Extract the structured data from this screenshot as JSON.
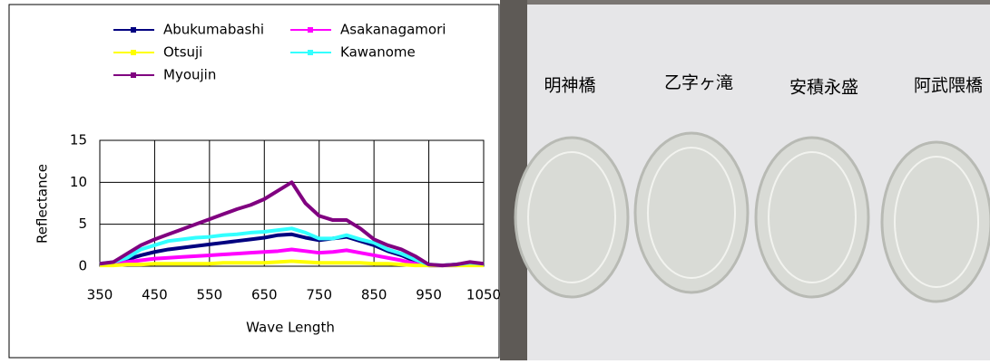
{
  "chart_data": {
    "type": "line",
    "xlabel": "Wave Length",
    "ylabel": "Reflectance",
    "x": [
      350,
      375,
      400,
      425,
      450,
      475,
      500,
      525,
      550,
      575,
      600,
      625,
      650,
      675,
      700,
      725,
      750,
      775,
      800,
      825,
      850,
      875,
      900,
      925,
      950,
      975,
      1000,
      1025,
      1050
    ],
    "xlim": [
      350,
      1050
    ],
    "xticks": [
      350,
      450,
      550,
      650,
      750,
      850,
      950,
      1050
    ],
    "ylim": [
      0,
      15
    ],
    "yticks": [
      0,
      5,
      10,
      15
    ],
    "grid": true,
    "series": [
      {
        "name": "Abukumabashi",
        "color": "#000080",
        "values": [
          0.3,
          0.4,
          0.8,
          1.3,
          1.7,
          2.0,
          2.2,
          2.4,
          2.6,
          2.8,
          3.0,
          3.2,
          3.4,
          3.7,
          3.8,
          3.4,
          3.1,
          3.3,
          3.5,
          3.0,
          2.5,
          1.8,
          1.3,
          0.6,
          0.1,
          0.1,
          0.2,
          0.4,
          0.3
        ]
      },
      {
        "name": "Asakanagamori",
        "color": "#ff00ff",
        "values": [
          0.2,
          0.3,
          0.5,
          0.7,
          0.9,
          1.0,
          1.1,
          1.2,
          1.3,
          1.4,
          1.5,
          1.6,
          1.7,
          1.8,
          2.0,
          1.8,
          1.6,
          1.7,
          1.9,
          1.6,
          1.3,
          1.0,
          0.7,
          0.3,
          0.1,
          0.1,
          0.1,
          0.2,
          0.2
        ]
      },
      {
        "name": "Otsuji",
        "color": "#ffff00",
        "values": [
          0.1,
          0.1,
          0.2,
          0.2,
          0.3,
          0.3,
          0.3,
          0.3,
          0.3,
          0.4,
          0.4,
          0.4,
          0.4,
          0.5,
          0.6,
          0.5,
          0.4,
          0.4,
          0.4,
          0.4,
          0.3,
          0.3,
          0.2,
          0.1,
          0.1,
          0.1,
          0.1,
          0.1,
          0.1
        ]
      },
      {
        "name": "Kawanome",
        "color": "#33ffff",
        "values": [
          0.3,
          0.5,
          1.0,
          2.0,
          2.5,
          3.0,
          3.2,
          3.4,
          3.5,
          3.7,
          3.8,
          4.0,
          4.1,
          4.3,
          4.5,
          4.0,
          3.3,
          3.3,
          3.7,
          3.2,
          2.8,
          2.0,
          1.5,
          0.8,
          0.2,
          0.1,
          0.2,
          0.4,
          0.3
        ]
      },
      {
        "name": "Myoujin",
        "color": "#800080",
        "values": [
          0.3,
          0.5,
          1.5,
          2.5,
          3.2,
          3.8,
          4.4,
          5.0,
          5.6,
          6.2,
          6.8,
          7.3,
          8.0,
          9.0,
          10.0,
          7.5,
          6.0,
          5.5,
          5.5,
          4.5,
          3.2,
          2.5,
          2.0,
          1.2,
          0.2,
          0.1,
          0.2,
          0.5,
          0.3
        ]
      }
    ]
  },
  "photo": {
    "labels": [
      "明神橋",
      "乙字ヶ滝",
      "安積永盛",
      "阿武隈橋"
    ]
  }
}
